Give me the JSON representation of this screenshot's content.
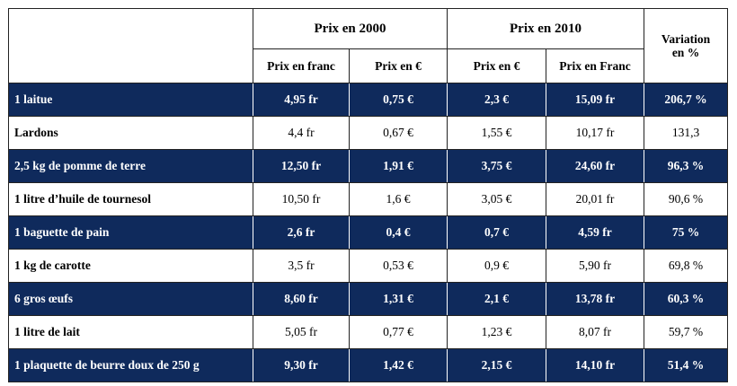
{
  "table": {
    "corner": "",
    "group_2000": "Prix en 2000",
    "group_2010": "Prix en 2010",
    "variation": "Variation\nen %",
    "sub_headers": [
      "Prix en franc",
      "Prix en €",
      "Prix en €",
      "Prix en Franc"
    ],
    "row_style": [
      "dark",
      "light",
      "dark",
      "light",
      "dark",
      "light",
      "dark",
      "light",
      "dark"
    ],
    "rows": [
      [
        "1 laitue",
        "4,95 fr",
        "0,75 €",
        "2,3 €",
        "15,09 fr",
        "206,7 %"
      ],
      [
        "Lardons",
        "4,4 fr",
        "0,67 €",
        "1,55 €",
        "10,17 fr",
        "131,3"
      ],
      [
        "2,5 kg de pomme de terre",
        "12,50 fr",
        "1,91 €",
        "3,75 €",
        "24,60 fr",
        "96,3 %"
      ],
      [
        "1 litre d’huile de tournesol",
        "10,50 fr",
        "1,6 €",
        "3,05 €",
        "20,01 fr",
        "90,6 %"
      ],
      [
        "1 baguette de pain",
        "2,6 fr",
        "0,4 €",
        "0,7 €",
        "4,59 fr",
        "75 %"
      ],
      [
        "1 kg de carotte",
        "3,5 fr",
        "0,53 €",
        "0,9 €",
        "5,90 fr",
        "69,8 %"
      ],
      [
        "6 gros œufs",
        "8,60 fr",
        "1,31 €",
        "2,1 €",
        "13,78 fr",
        "60,3 %"
      ],
      [
        "1 litre de lait",
        "5,05 fr",
        "0,77 €",
        "1,23 €",
        "8,07 fr",
        "59,7 %"
      ],
      [
        "1 plaquette de beurre doux de 250 g",
        "9,30 fr",
        "1,42 €",
        "2,15 €",
        "14,10 fr",
        "51,4 %"
      ]
    ],
    "colors": {
      "dark_row_bg": "#0f2a5c",
      "dark_row_text": "#ffffff",
      "border": "#222222"
    }
  }
}
